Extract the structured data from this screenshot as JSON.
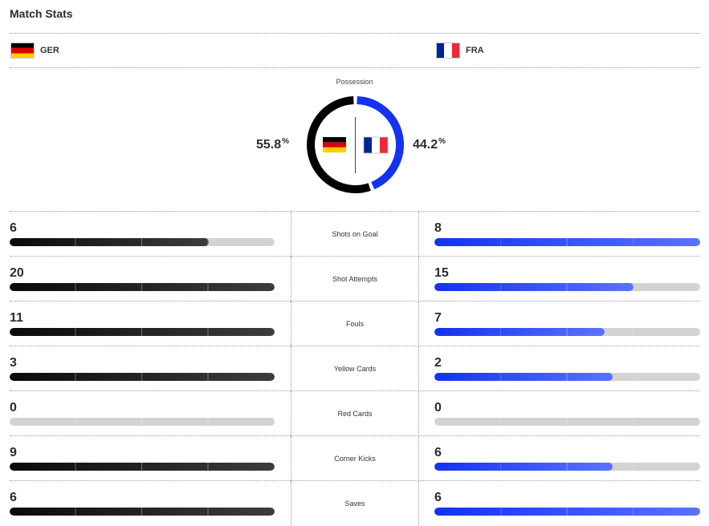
{
  "title": "Match Stats",
  "teams": {
    "home": {
      "code": "GER",
      "flag": "germany-flag-icon",
      "bar_color": "#000000"
    },
    "away": {
      "code": "FRA",
      "flag": "france-flag-icon",
      "bar_color": "#1432f0"
    }
  },
  "possession": {
    "label": "Possession",
    "home_value": "55.8",
    "away_value": "44.2",
    "unit": "%"
  },
  "stats": [
    {
      "label": "Shots on Goal",
      "home": "6",
      "away": "8",
      "home_fill": 0.75,
      "away_fill": 1.0
    },
    {
      "label": "Shot Attempts",
      "home": "20",
      "away": "15",
      "home_fill": 1.0,
      "away_fill": 0.75
    },
    {
      "label": "Fouls",
      "home": "11",
      "away": "7",
      "home_fill": 1.0,
      "away_fill": 0.64
    },
    {
      "label": "Yellow Cards",
      "home": "3",
      "away": "2",
      "home_fill": 1.0,
      "away_fill": 0.67
    },
    {
      "label": "Red Cards",
      "home": "0",
      "away": "0",
      "home_fill": 0,
      "away_fill": 0
    },
    {
      "label": "Corner Kicks",
      "home": "9",
      "away": "6",
      "home_fill": 1.0,
      "away_fill": 0.67
    },
    {
      "label": "Saves",
      "home": "6",
      "away": "6",
      "home_fill": 1.0,
      "away_fill": 1.0
    }
  ]
}
